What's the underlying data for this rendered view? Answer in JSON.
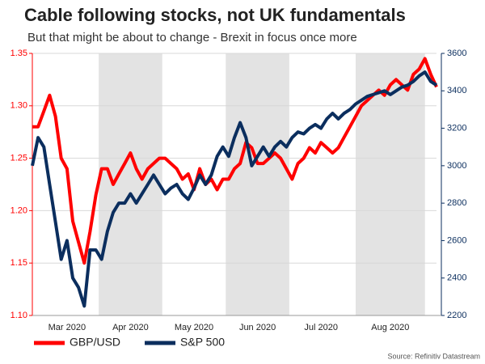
{
  "chart_data": {
    "type": "line",
    "title": "Cable following stocks, not UK fundamentals",
    "subtitle": "But that might be about to change - Brexit in focus once more",
    "source": "Source: Refinitiv Datastream",
    "categories": [
      null,
      null,
      null,
      null,
      null,
      null,
      "Mar 2020",
      null,
      null,
      null,
      null,
      null,
      null,
      null,
      null,
      null,
      null,
      "Apr 2020",
      null,
      null,
      null,
      null,
      null,
      null,
      null,
      null,
      null,
      null,
      "May 2020",
      null,
      null,
      null,
      null,
      null,
      null,
      null,
      null,
      null,
      null,
      "Jun 2020",
      null,
      null,
      null,
      null,
      null,
      null,
      null,
      null,
      null,
      null,
      "Jul 2020",
      null,
      null,
      null,
      null,
      null,
      null,
      null,
      null,
      null,
      null,
      null,
      "Aug 2020",
      null,
      null,
      null,
      null,
      null,
      null,
      null,
      null
    ],
    "series": [
      {
        "name": "GBP/USD",
        "color": "#ff0000",
        "values": [
          1.28,
          1.28,
          1.295,
          1.31,
          1.29,
          1.25,
          1.24,
          1.19,
          1.17,
          1.15,
          1.18,
          1.215,
          1.24,
          1.24,
          1.225,
          1.235,
          1.245,
          1.255,
          1.24,
          1.23,
          1.24,
          1.245,
          1.25,
          1.25,
          1.245,
          1.24,
          1.23,
          1.235,
          1.22,
          1.24,
          1.225,
          1.23,
          1.22,
          1.23,
          1.23,
          1.24,
          1.245,
          1.265,
          1.26,
          1.245,
          1.245,
          1.25,
          1.255,
          1.25,
          1.24,
          1.23,
          1.245,
          1.25,
          1.26,
          1.255,
          1.265,
          1.26,
          1.255,
          1.26,
          1.27,
          1.28,
          1.29,
          1.3,
          1.305,
          1.31,
          1.315,
          1.31,
          1.32,
          1.325,
          1.32,
          1.315,
          1.33,
          1.335,
          1.345,
          1.33,
          1.318
        ]
      },
      {
        "name": "S&P 500",
        "color": "#0b2e5e",
        "axis": "y2",
        "values": [
          3000,
          3150,
          3100,
          2900,
          2700,
          2500,
          2600,
          2400,
          2350,
          2250,
          2550,
          2550,
          2500,
          2650,
          2750,
          2800,
          2800,
          2850,
          2800,
          2850,
          2900,
          2950,
          2900,
          2850,
          2880,
          2900,
          2850,
          2820,
          2880,
          2950,
          2900,
          2950,
          3050,
          3100,
          3050,
          3150,
          3230,
          3150,
          3000,
          3050,
          3100,
          3050,
          3100,
          3130,
          3100,
          3150,
          3180,
          3170,
          3200,
          3220,
          3200,
          3250,
          3280,
          3250,
          3280,
          3300,
          3330,
          3350,
          3370,
          3380,
          3390,
          3400,
          3380,
          3400,
          3420,
          3430,
          3450,
          3480,
          3500,
          3450,
          3430
        ]
      }
    ],
    "ylim": [
      1.1,
      1.35
    ],
    "yticks": [
      {
        "value": 1.1,
        "label": "1.10"
      },
      1.15,
      {
        "value": 1.2,
        "label": "1.20"
      },
      1.25,
      {
        "value": 1.3,
        "label": "1.30"
      },
      1.35
    ],
    "y2lim": [
      2200,
      3600
    ],
    "y2ticks": [
      2200,
      2400,
      2600,
      2800,
      3000,
      3200,
      3400,
      3600
    ],
    "grid": true
  }
}
